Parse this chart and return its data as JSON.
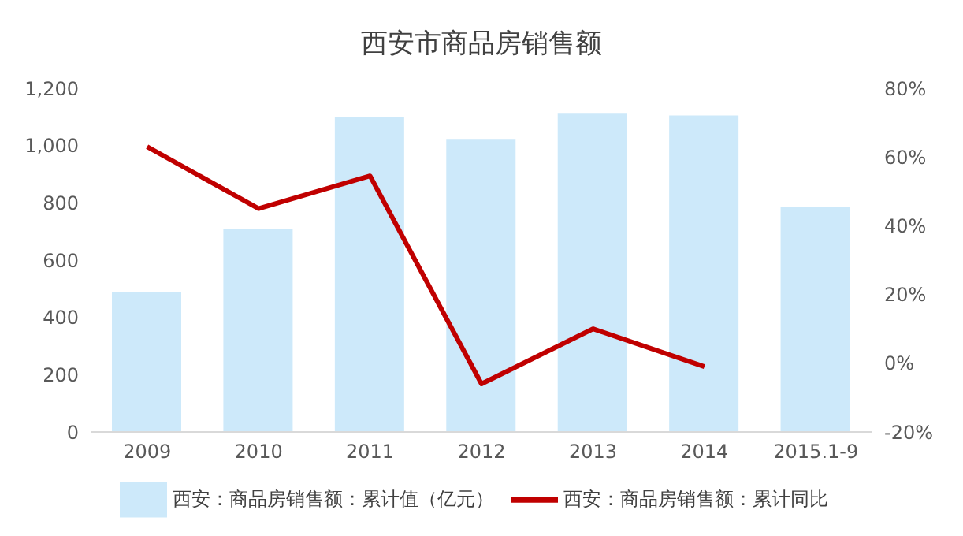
{
  "chart_data": {
    "type": "bar",
    "title": "西安市商品房销售额",
    "categories": [
      "2009",
      "2010",
      "2011",
      "2012",
      "2013",
      "2014",
      "2015.1-9"
    ],
    "series": [
      {
        "name": "西安：商品房销售额：累计值（亿元）",
        "color": "#cde9fa",
        "values": [
          489,
          707,
          1101,
          1023,
          1114,
          1105,
          786
        ]
      },
      {
        "name": "西安：商品房销售额：累计同比",
        "type": "line",
        "axis": "y2",
        "color": "#c00000",
        "values": [
          63,
          45,
          54.5,
          -6,
          10,
          -1,
          null
        ]
      }
    ],
    "ylim": [
      0,
      1200
    ],
    "yticks": [
      0,
      {
        "value": 200,
        "label": "200"
      },
      {
        "value": 400,
        "label": "400"
      },
      {
        "value": 600,
        "label": "600"
      },
      {
        "value": 800,
        "label": "800"
      },
      {
        "value": 1000,
        "label": "1,000"
      },
      {
        "value": 1200,
        "label": "1,200"
      }
    ],
    "y2lim": [
      -20,
      80
    ],
    "y2ticks": [
      {
        "value": -20,
        "label": "-20%"
      },
      {
        "value": 0,
        "label": "0%"
      },
      {
        "value": 20,
        "label": "20%"
      },
      {
        "value": 40,
        "label": "40%"
      },
      {
        "value": 60,
        "label": "60%"
      },
      {
        "value": 80,
        "label": "80%"
      }
    ],
    "grid": false,
    "legend": "bottom",
    "marker": "none",
    "line_style": "solid"
  }
}
